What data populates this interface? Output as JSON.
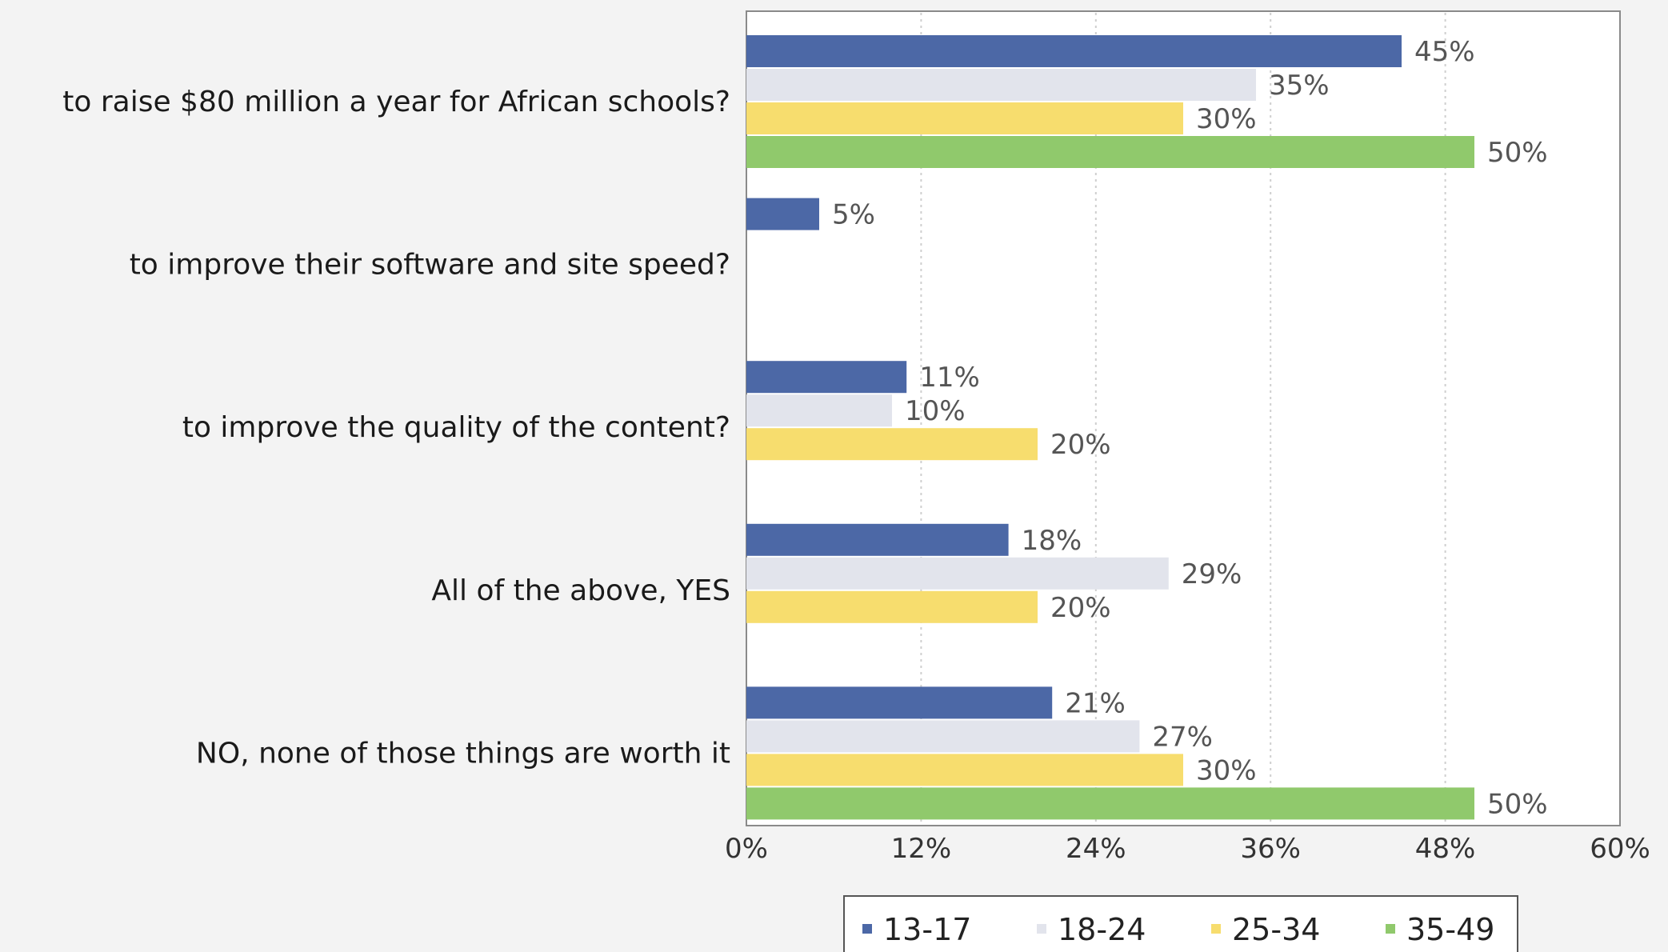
{
  "chart_data": {
    "type": "bar",
    "orientation": "horizontal",
    "categories": [
      "to raise $80 million a year for African schools?",
      "to improve their software and site speed?",
      "to improve the quality of the content?",
      "All of the above, YES",
      "NO, none of those things are worth it"
    ],
    "series": [
      {
        "name": "13-17",
        "color": "#4c68a6",
        "values": [
          45,
          5,
          11,
          18,
          21
        ],
        "labels": [
          "45%",
          "5%",
          "11%",
          "18%",
          "21%"
        ]
      },
      {
        "name": "18-24",
        "color": "#e2e4ec",
        "values": [
          35,
          null,
          10,
          29,
          27
        ],
        "labels": [
          "35%",
          "",
          "10%",
          "29%",
          "27%"
        ]
      },
      {
        "name": "25-34",
        "color": "#f7dd6e",
        "values": [
          30,
          null,
          20,
          20,
          30
        ],
        "labels": [
          "30%",
          "",
          "20%",
          "20%",
          "30%"
        ]
      },
      {
        "name": "35-49",
        "color": "#90c96c",
        "values": [
          50,
          null,
          null,
          null,
          50
        ],
        "labels": [
          "50%",
          "",
          "",
          "",
          "50%"
        ]
      }
    ],
    "xlim": [
      0,
      60
    ],
    "xticks": [
      0,
      12,
      24,
      36,
      48,
      60
    ],
    "xtick_labels": [
      "0%",
      "12%",
      "24%",
      "36%",
      "48%",
      "60%"
    ],
    "grid": true,
    "legend_position": "bottom"
  }
}
